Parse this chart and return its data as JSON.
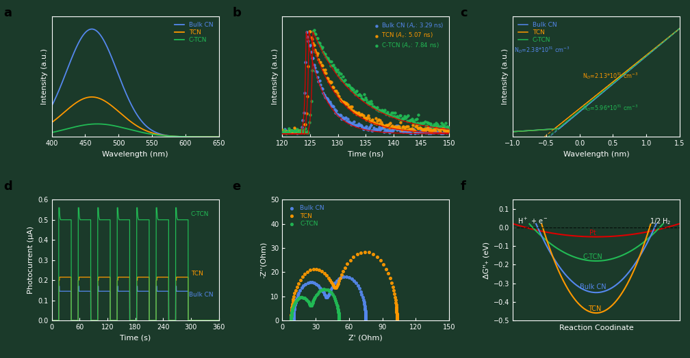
{
  "bg_color": "#1b3a2a",
  "panel_label_color": "black",
  "panel_labels": [
    "a",
    "b",
    "c",
    "d",
    "e",
    "f"
  ],
  "a_xlabel": "Wavelength (nm)",
  "a_ylabel": "Intensity (a.u.)",
  "a_xlim": [
    400,
    650
  ],
  "a_colors": [
    "#5588ee",
    "#ff9900",
    "#22bb55"
  ],
  "a_legend": [
    "Bulk CN",
    "TCN",
    "C-TCN"
  ],
  "b_xlabel": "Time (ns)",
  "b_ylabel": "Intensity (a.u.)",
  "b_xlim": [
    120,
    150
  ],
  "b_colors": [
    "#5588ee",
    "#ff9900",
    "#22bb55"
  ],
  "b_fit_color": "#dd0000",
  "c_xlabel": "Wavelength (nm)",
  "c_ylabel": "Intensity (a.u.)",
  "c_xlim": [
    -1.0,
    1.5
  ],
  "c_colors": [
    "#5588ee",
    "#ff9900",
    "#22bb55"
  ],
  "c_legend": [
    "Bulk CN",
    "TCN",
    "C-TCN"
  ],
  "d_xlabel": "Time (s)",
  "d_ylabel": "Photocurrent (μA)",
  "d_xlim": [
    0,
    360
  ],
  "d_ylim": [
    0.0,
    0.6
  ],
  "d_colors": [
    "#5588ee",
    "#ff9900",
    "#22bb55"
  ],
  "e_xlabel": "Z' (Ohm)",
  "e_ylabel": "-Z''(Ohm)",
  "e_xlim": [
    0,
    150
  ],
  "e_ylim": [
    0,
    50
  ],
  "e_colors": [
    "#5588ee",
    "#ff9900",
    "#22bb55"
  ],
  "e_legend": [
    "Bulk CN",
    "TCN",
    "C-TCN"
  ],
  "f_xlabel": "Reaction Coodinate",
  "f_ylabel": "ΔGᴴ₊ (eV)",
  "f_xlim": [
    0,
    10
  ],
  "f_ylim": [
    -0.5,
    0.15
  ],
  "f_colors": [
    "#dd0000",
    "#22bb55",
    "#5588ee",
    "#ff9900"
  ],
  "f_labels": [
    "Pt",
    "C-TCN",
    "Bulk CN",
    "TCN"
  ]
}
